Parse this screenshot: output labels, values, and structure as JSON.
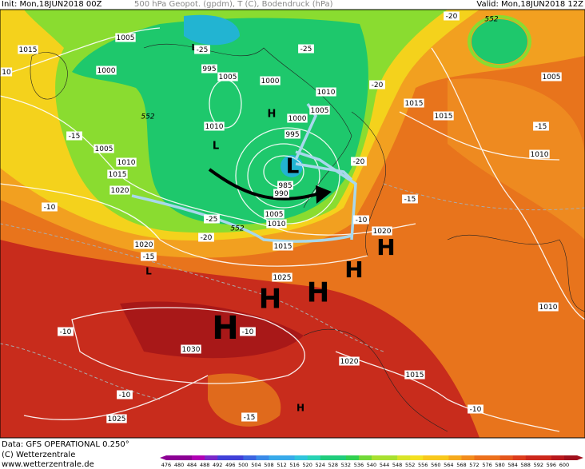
{
  "header": {
    "init": "Init: Mon,18JUN2018 00Z",
    "product": "500 hPa Geopot. (gpdm), T (C), Bodendruck (hPa)",
    "valid": "Valid: Mon,18JUN2018 12Z"
  },
  "footer": {
    "data": "Data: GFS OPERATIONAL 0.250°",
    "copyright": "(C) Wetterzentrale",
    "url": "www.wetterzentrale.de"
  },
  "colorbar": {
    "labels": [
      476,
      480,
      484,
      488,
      492,
      496,
      500,
      504,
      508,
      512,
      516,
      520,
      524,
      528,
      532,
      536,
      540,
      544,
      548,
      552,
      556,
      560,
      564,
      568,
      572,
      576,
      580,
      584,
      588,
      592,
      596,
      600
    ]
  },
  "map": {
    "pressure_systems": [
      "L",
      "L",
      "H",
      "L",
      "H",
      "H",
      "H",
      "H",
      "H",
      "H",
      "L"
    ],
    "isobar_labels": [
      "1005",
      "1015",
      "1000",
      "995",
      "1005",
      "1000",
      "1010",
      "1005",
      "1000",
      "1015",
      "1015",
      "1010",
      "1005",
      "1010",
      "1015",
      "1020",
      "995",
      "985",
      "990",
      "1005",
      "1010",
      "1015",
      "1020",
      "1020",
      "1005",
      "1010",
      "1025",
      "1030",
      "1020",
      "1015",
      "1010",
      "1025",
      "10"
    ],
    "temperature_labels": [
      "-25",
      "-25",
      "-20",
      "-20",
      "-15",
      "-15",
      "-20",
      "-25",
      "-20",
      "-15",
      "-10",
      "-15",
      "-10",
      "-10",
      "-10",
      "-10",
      "-15",
      "-10"
    ],
    "geopotential_labels": [
      "552",
      "552",
      "552"
    ]
  }
}
